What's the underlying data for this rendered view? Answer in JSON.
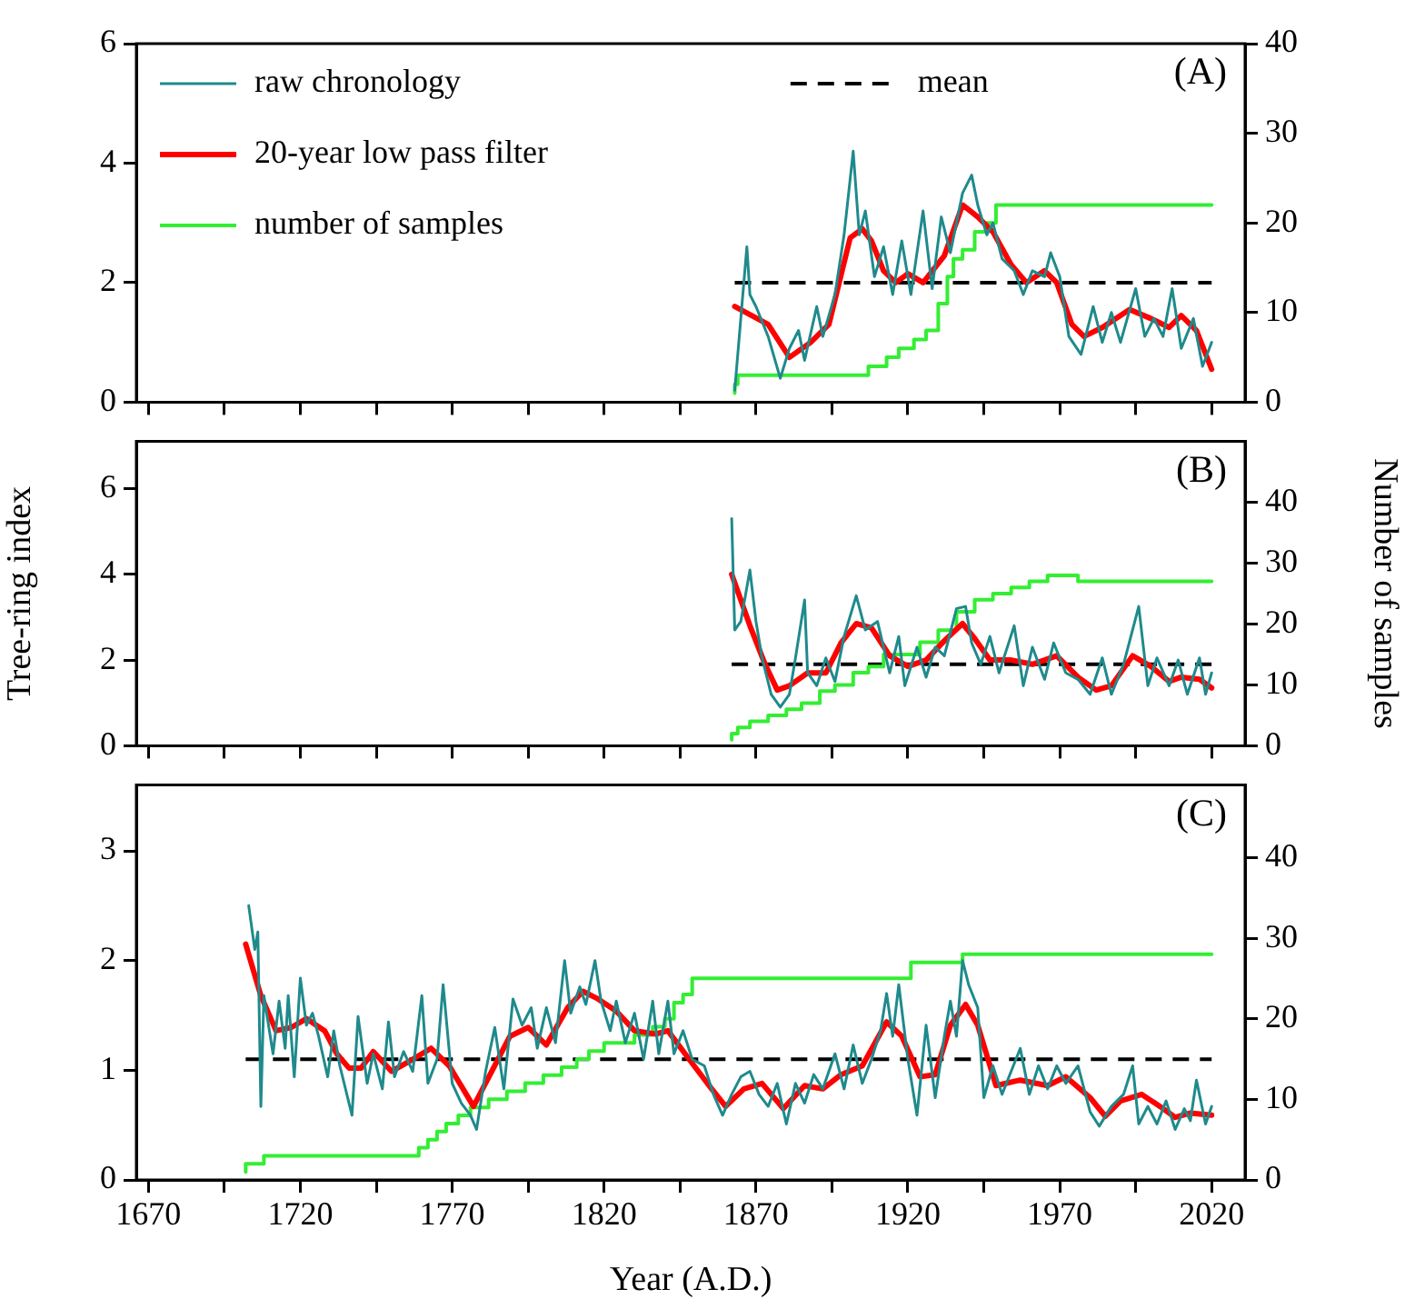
{
  "chart_data": [
    {
      "type": "line",
      "title": "(A)",
      "legend": "top left",
      "grid": false,
      "marker": "none",
      "tick_labels": "y",
      "xlim": [
        1666,
        2031
      ],
      "xticks": [
        1670,
        {
          "value": 1695,
          "label": null
        },
        1720,
        {
          "value": 1745,
          "label": null
        },
        1770,
        {
          "value": 1795,
          "label": null
        },
        1820,
        {
          "value": 1845,
          "label": null
        },
        1870,
        {
          "value": 1895,
          "label": null
        },
        1920,
        {
          "value": 1945,
          "label": null
        },
        1970,
        {
          "value": 1995,
          "label": null
        },
        2020
      ],
      "ylim": [
        0,
        6
      ],
      "yticks": [
        0,
        2,
        4,
        6
      ],
      "y2lim": [
        0,
        40
      ],
      "y2ticks": [
        0,
        10,
        20,
        30,
        40
      ],
      "ref_lines": [
        {
          "axis": "y",
          "value": 2.0,
          "label": "mean",
          "color": "#000000",
          "line_style": "dashed"
        }
      ],
      "series": [
        {
          "name": "raw chronology",
          "type": "line",
          "color": "#1f8a8c",
          "x": [
            1863,
            1867,
            1868,
            1870,
            1874,
            1878,
            1881,
            1884,
            1886,
            1890,
            1892,
            1896,
            1899,
            1902,
            1904,
            1906,
            1909,
            1912,
            1915,
            1918,
            1921,
            1925,
            1928,
            1931,
            1934,
            1938,
            1941,
            1943,
            1946,
            1948,
            1951,
            1955,
            1958,
            1961,
            1965,
            1967,
            1970,
            1973,
            1977,
            1981,
            1984,
            1987,
            1990,
            1995,
            1998,
            2001,
            2004,
            2007,
            2010,
            2014,
            2017,
            2020
          ],
          "values": [
            0.2,
            2.6,
            1.8,
            1.6,
            1.1,
            0.4,
            0.9,
            1.2,
            0.7,
            1.6,
            1.1,
            1.8,
            2.8,
            4.2,
            2.8,
            3.2,
            2.1,
            2.6,
            1.8,
            2.7,
            1.8,
            3.2,
            1.9,
            3.1,
            2.5,
            3.5,
            3.8,
            3.3,
            2.8,
            3.0,
            2.4,
            2.2,
            1.8,
            2.2,
            2.1,
            2.5,
            2.1,
            1.1,
            0.8,
            1.6,
            1.0,
            1.5,
            1.0,
            1.9,
            1.1,
            1.4,
            1.1,
            1.9,
            0.9,
            1.4,
            0.6,
            1.0
          ]
        },
        {
          "name": "20-year low pass filter",
          "type": "line",
          "color": "#ff0000",
          "x": [
            1863,
            1874,
            1881,
            1888,
            1894,
            1901,
            1905,
            1908,
            1912,
            1916,
            1920,
            1925,
            1932,
            1938,
            1943,
            1948,
            1954,
            1959,
            1965,
            1969,
            1974,
            1978,
            1984,
            1993,
            2000,
            2006,
            2010,
            2015,
            2020
          ],
          "values": [
            1.6,
            1.3,
            0.75,
            1.0,
            1.3,
            2.75,
            2.9,
            2.7,
            2.2,
            2.0,
            2.15,
            2.0,
            2.45,
            3.3,
            3.1,
            2.85,
            2.3,
            2.0,
            2.2,
            2.0,
            1.3,
            1.1,
            1.25,
            1.55,
            1.4,
            1.25,
            1.45,
            1.2,
            0.55
          ]
        },
        {
          "name": "number of samples",
          "type": "step",
          "axis": "y2",
          "color": "#33ee33",
          "x": [
            1863,
            1864,
            1907,
            1913,
            1917,
            1922,
            1926,
            1930,
            1933,
            1935,
            1938,
            1942,
            1946,
            1949,
            1969,
            2020
          ],
          "values": [
            1,
            2,
            3,
            4,
            5,
            6,
            7,
            8,
            11,
            14,
            16,
            17,
            19,
            20,
            22,
            22
          ]
        }
      ]
    },
    {
      "type": "line",
      "title": "(B)",
      "ylabel": "Tree-ring index",
      "y2label": "Number of samples",
      "grid": false,
      "marker": "none",
      "tick_labels": "y",
      "xlim": [
        1666,
        2031
      ],
      "xticks": [
        1670,
        {
          "value": 1695,
          "label": null
        },
        1720,
        {
          "value": 1745,
          "label": null
        },
        1770,
        {
          "value": 1795,
          "label": null
        },
        1820,
        {
          "value": 1845,
          "label": null
        },
        1870,
        {
          "value": 1895,
          "label": null
        },
        1920,
        {
          "value": 1945,
          "label": null
        },
        1970,
        {
          "value": 1995,
          "label": null
        },
        2020
      ],
      "ylim": [
        0,
        7.1
      ],
      "yticks": [
        0,
        2,
        4,
        6
      ],
      "y2lim": [
        0,
        50
      ],
      "y2ticks": [
        0,
        10,
        20,
        30,
        40
      ],
      "ref_lines": [
        {
          "axis": "y",
          "value": 1.9,
          "color": "#000000",
          "line_style": "dashed"
        }
      ],
      "series": [
        {
          "type": "line",
          "color": "#1f8a8c",
          "x": [
            1862,
            1863,
            1865,
            1868,
            1870,
            1872,
            1875,
            1878,
            1881,
            1883,
            1886,
            1887,
            1890,
            1893,
            1896,
            1899,
            1903,
            1906,
            1910,
            1914,
            1917,
            1919,
            1923,
            1926,
            1929,
            1932,
            1936,
            1939,
            1941,
            1944,
            1947,
            1950,
            1955,
            1958,
            1961,
            1965,
            1968,
            1972,
            1976,
            1980,
            1984,
            1987,
            1991,
            1996,
            1999,
            2002,
            2006,
            2009,
            2012,
            2016,
            2018,
            2020
          ],
          "values": [
            5.3,
            2.7,
            2.9,
            4.1,
            2.9,
            2.05,
            1.2,
            0.9,
            1.2,
            2.05,
            3.4,
            1.7,
            1.4,
            2.05,
            1.5,
            2.55,
            3.5,
            2.7,
            2.9,
            1.7,
            2.55,
            1.4,
            2.3,
            1.6,
            2.3,
            2.1,
            3.2,
            3.25,
            2.4,
            1.9,
            2.55,
            1.7,
            2.8,
            1.4,
            2.3,
            1.55,
            2.4,
            1.7,
            1.55,
            1.2,
            2.05,
            1.2,
            1.9,
            3.25,
            1.4,
            2.05,
            1.4,
            2.0,
            1.2,
            2.05,
            1.2,
            1.7
          ]
        },
        {
          "type": "line",
          "color": "#ff0000",
          "x": [
            1862,
            1868,
            1873,
            1877,
            1881,
            1887,
            1893,
            1898,
            1903,
            1908,
            1914,
            1920,
            1926,
            1932,
            1938,
            1942,
            1947,
            1954,
            1961,
            1969,
            1976,
            1982,
            1987,
            1994,
            2000,
            2006,
            2010,
            2016,
            2020
          ],
          "values": [
            4.0,
            2.8,
            1.9,
            1.3,
            1.4,
            1.7,
            1.7,
            2.4,
            2.85,
            2.75,
            2.1,
            1.85,
            2.0,
            2.45,
            2.85,
            2.5,
            2.0,
            2.0,
            1.9,
            2.1,
            1.6,
            1.3,
            1.4,
            2.1,
            1.85,
            1.5,
            1.6,
            1.55,
            1.35
          ]
        },
        {
          "type": "step",
          "axis": "y2",
          "color": "#33ee33",
          "x": [
            1862,
            1864,
            1868,
            1874,
            1880,
            1885,
            1891,
            1896,
            1902,
            1907,
            1912,
            1924,
            1930,
            1936,
            1942,
            1948,
            1954,
            1960,
            1966,
            1976,
            2019,
            2020
          ],
          "values": [
            1,
            2,
            3,
            4,
            5,
            6,
            7,
            9,
            10,
            12,
            13,
            15,
            17,
            19,
            22,
            24,
            25,
            26,
            27,
            28,
            27,
            27
          ]
        }
      ]
    },
    {
      "type": "line",
      "title": "(C)",
      "xlabel": "Year (A.D.)",
      "grid": false,
      "marker": "none",
      "xlim": [
        1666,
        2031
      ],
      "xticks": [
        1670,
        {
          "value": 1695,
          "label": null
        },
        1720,
        {
          "value": 1745,
          "label": null
        },
        1770,
        {
          "value": 1795,
          "label": null
        },
        1820,
        {
          "value": 1845,
          "label": null
        },
        1870,
        {
          "value": 1895,
          "label": null
        },
        1920,
        {
          "value": 1945,
          "label": null
        },
        1970,
        {
          "value": 1995,
          "label": null
        },
        2020
      ],
      "ylim": [
        0,
        3.6
      ],
      "yticks": [
        0,
        1,
        2,
        3
      ],
      "y2lim": [
        0,
        49
      ],
      "y2ticks": [
        0,
        10,
        20,
        30,
        40
      ],
      "ref_lines": [
        {
          "axis": "y",
          "value": 1.1,
          "color": "#000000",
          "line_style": "dashed"
        }
      ],
      "series": [
        {
          "type": "line",
          "color": "#1f8a8c",
          "x": [
            1703,
            1705,
            1706,
            1707,
            1708,
            1711,
            1713,
            1715,
            1716,
            1718,
            1720,
            1722,
            1724,
            1726,
            1729,
            1731,
            1733,
            1737,
            1739,
            1742,
            1744,
            1747,
            1749,
            1751,
            1754,
            1757,
            1760,
            1762,
            1765,
            1767,
            1770,
            1773,
            1776,
            1778,
            1781,
            1784,
            1787,
            1790,
            1793,
            1796,
            1798,
            1801,
            1804,
            1807,
            1809,
            1812,
            1814,
            1817,
            1819,
            1822,
            1824,
            1827,
            1830,
            1833,
            1836,
            1838,
            1841,
            1843,
            1846,
            1849,
            1853,
            1856,
            1859,
            1862,
            1865,
            1868,
            1871,
            1874,
            1877,
            1880,
            1883,
            1886,
            1889,
            1892,
            1896,
            1899,
            1902,
            1905,
            1908,
            1911,
            1913,
            1915,
            1917,
            1920,
            1923,
            1926,
            1929,
            1932,
            1934,
            1936,
            1938,
            1940,
            1943,
            1945,
            1948,
            1951,
            1954,
            1957,
            1960,
            1963,
            1966,
            1969,
            1972,
            1976,
            1980,
            1983,
            1987,
            1991,
            1994,
            1996,
            1999,
            2002,
            2005,
            2008,
            2011,
            2013,
            2015,
            2018,
            2020
          ],
          "values": [
            2.5,
            2.1,
            2.26,
            0.67,
            1.68,
            1.15,
            1.63,
            1.2,
            1.68,
            0.94,
            1.84,
            1.41,
            1.52,
            1.31,
            0.94,
            1.36,
            1.04,
            0.59,
            1.49,
            0.88,
            1.15,
            0.83,
            1.44,
            0.94,
            1.17,
            0.99,
            1.68,
            0.88,
            1.1,
            1.78,
            0.88,
            0.7,
            0.59,
            0.46,
            0.99,
            1.39,
            0.83,
            1.65,
            1.41,
            1.57,
            1.2,
            1.57,
            1.25,
            2.0,
            1.52,
            1.76,
            1.6,
            2.0,
            1.63,
            1.36,
            1.63,
            1.25,
            1.52,
            1.1,
            1.63,
            1.15,
            1.63,
            1.15,
            1.36,
            1.1,
            1.04,
            0.78,
            0.59,
            0.78,
            0.94,
            0.99,
            0.78,
            0.67,
            0.88,
            0.51,
            0.88,
            0.7,
            0.96,
            0.83,
            1.15,
            0.83,
            1.23,
            0.88,
            1.1,
            1.36,
            1.7,
            1.31,
            1.78,
            1.1,
            0.59,
            1.41,
            0.75,
            1.31,
            1.63,
            1.31,
            2.0,
            1.78,
            1.57,
            0.75,
            1.04,
            0.78,
            0.99,
            1.2,
            0.78,
            1.04,
            0.83,
            1.04,
            0.88,
            1.04,
            0.62,
            0.49,
            0.67,
            0.78,
            1.04,
            0.51,
            0.67,
            0.51,
            0.72,
            0.46,
            0.65,
            0.54,
            0.91,
            0.51,
            0.67
          ]
        },
        {
          "type": "line",
          "color": "#ff0000",
          "x": [
            1702,
            1707,
            1712,
            1717,
            1722,
            1728,
            1732,
            1736,
            1740,
            1744,
            1750,
            1757,
            1763,
            1769,
            1777,
            1783,
            1789,
            1795,
            1801,
            1808,
            1813,
            1818,
            1824,
            1830,
            1837,
            1841,
            1848,
            1854,
            1860,
            1866,
            1872,
            1879,
            1886,
            1892,
            1898,
            1905,
            1913,
            1918,
            1924,
            1929,
            1934,
            1939,
            1943,
            1949,
            1957,
            1966,
            1972,
            1980,
            1985,
            1990,
            1997,
            2003,
            2008,
            2013,
            2020
          ],
          "values": [
            2.15,
            1.68,
            1.36,
            1.39,
            1.47,
            1.36,
            1.15,
            1.02,
            1.02,
            1.17,
            0.99,
            1.1,
            1.2,
            1.04,
            0.67,
            0.99,
            1.31,
            1.39,
            1.23,
            1.57,
            1.72,
            1.65,
            1.54,
            1.36,
            1.33,
            1.36,
            1.1,
            0.88,
            0.67,
            0.83,
            0.88,
            0.65,
            0.86,
            0.83,
            0.96,
            1.04,
            1.44,
            1.31,
            0.94,
            0.96,
            1.41,
            1.6,
            1.41,
            0.86,
            0.91,
            0.86,
            0.94,
            0.75,
            0.58,
            0.72,
            0.78,
            0.67,
            0.57,
            0.61,
            0.59
          ]
        },
        {
          "type": "step",
          "axis": "y2",
          "color": "#33ee33",
          "x": [
            1702,
            1708,
            1759,
            1762,
            1765,
            1768,
            1772,
            1776,
            1782,
            1788,
            1794,
            1800,
            1806,
            1811,
            1815,
            1820,
            1830,
            1836,
            1840,
            1843,
            1846,
            1849,
            1921,
            1925,
            1938,
            1940,
            2020
          ],
          "values": [
            1,
            2,
            3,
            4,
            5,
            6,
            7,
            8,
            9,
            10,
            11,
            12,
            13,
            14,
            15,
            16,
            17,
            18,
            19,
            20,
            22,
            23,
            25,
            27,
            27,
            28,
            28
          ]
        }
      ]
    }
  ]
}
